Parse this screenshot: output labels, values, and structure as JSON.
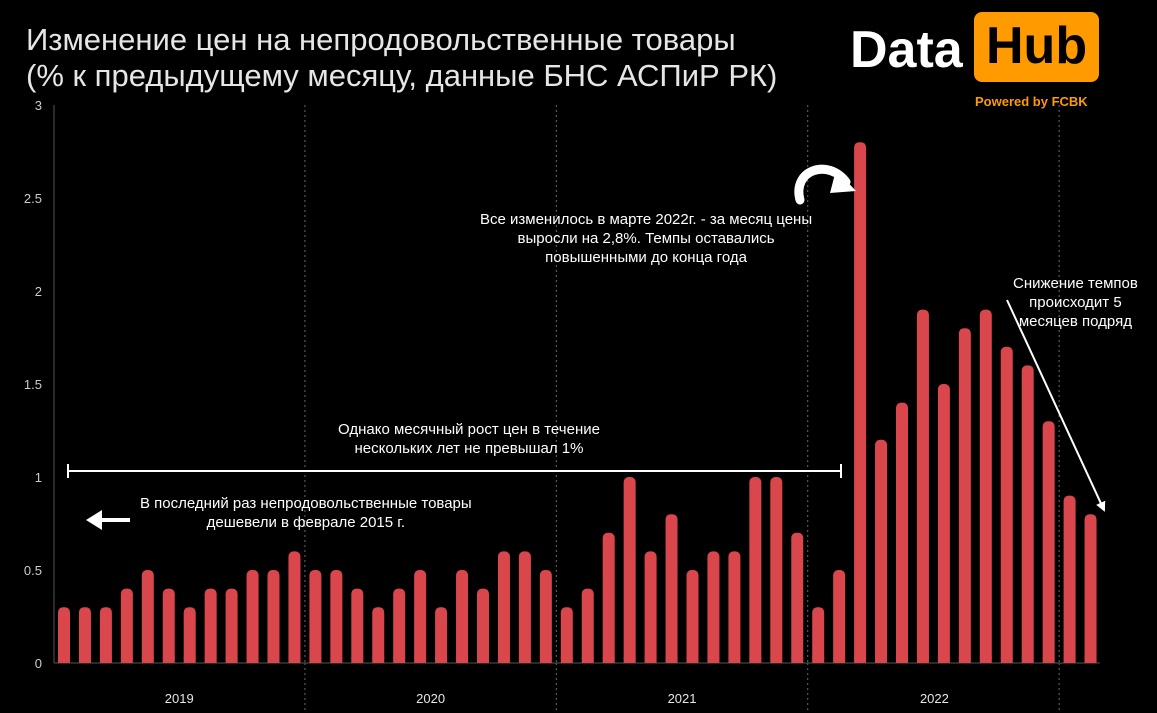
{
  "title_line1": "Изменение цен на непродовольственные товары",
  "title_line2": "(% к предыдущему месяцу, данные БНС АСПиР РК)",
  "logo": {
    "data": "Data",
    "hub": "Hub",
    "powered": "Powered by FCBK"
  },
  "colors": {
    "bar": "#d9474c",
    "background": "#000000",
    "accent": "#ff9a00",
    "text": "#ffffff"
  },
  "annotations": {
    "march_2022_line1": "Все изменилось в марте 2022г. - за месяц цены",
    "march_2022_line2": "выросли на 2,8%. Темпы оставались",
    "march_2022_line3": "повышенными до конца года",
    "decline_line1": "Снижение темпов",
    "decline_line2": "происходит 5",
    "decline_line3": "месяцев подряд",
    "range_line1": "Однако месячный рост цен в течение",
    "range_line2": "нескольких лет не превышал 1%",
    "last_drop_line1": "В последний раз непродовольственные товары",
    "last_drop_line2": "дешевели в феврале 2015 г."
  },
  "chart_data": {
    "type": "bar",
    "ylim": [
      0,
      3
    ],
    "yticks": [
      "0",
      "0.5",
      "1",
      "1.5",
      "2",
      "2.5",
      "3"
    ],
    "ytick_values": [
      0,
      0.5,
      1,
      1.5,
      2,
      2.5,
      3
    ],
    "grid": "vertical dotted lines between years",
    "year_labels": [
      "2019",
      "2020",
      "2021",
      "2022"
    ],
    "values": [
      0.3,
      0.3,
      0.3,
      0.4,
      0.5,
      0.4,
      0.3,
      0.4,
      0.4,
      0.5,
      0.5,
      0.6,
      0.5,
      0.5,
      0.4,
      0.3,
      0.4,
      0.5,
      0.3,
      0.5,
      0.4,
      0.6,
      0.6,
      0.5,
      0.3,
      0.4,
      0.7,
      1.0,
      0.6,
      0.8,
      0.5,
      0.6,
      0.6,
      1.0,
      1.0,
      0.7,
      0.3,
      0.5,
      2.8,
      1.2,
      1.4,
      1.9,
      1.5,
      1.8,
      1.9,
      1.7,
      1.6,
      1.3,
      0.9,
      0.8
    ]
  }
}
